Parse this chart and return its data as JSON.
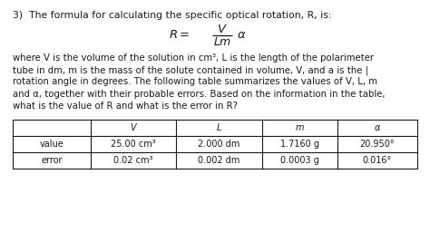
{
  "title_text": "3)  The formula for calculating the specific optical rotation, R, is:",
  "body_text_lines": [
    "where V is the volume of the solution in cm³, L is the length of the polarimeter",
    "tube in dm, m is the mass of the solute contained in volume, V, and a is the |",
    "rotation angle in degrees. The following table summarizes the values of V, L, m",
    "and α, together with their probable errors. Based on the information in the table,",
    "what is the value of R and what is the error in R?"
  ],
  "table_headers": [
    "",
    "V",
    "L",
    "m",
    "α"
  ],
  "table_row1": [
    "value",
    "25.00 cm³",
    "2.000 dm",
    "1.7160 g",
    "20.950°"
  ],
  "table_row2": [
    "error",
    "0.02 cm³",
    "0.002 dm",
    "0.0003 g",
    "0.016°"
  ],
  "bg_color": "#ffffff",
  "text_color": "#1a1a1a",
  "font_size_title": 7.8,
  "font_size_body": 7.3,
  "font_size_formula": 9.5,
  "font_size_table": 7.0
}
